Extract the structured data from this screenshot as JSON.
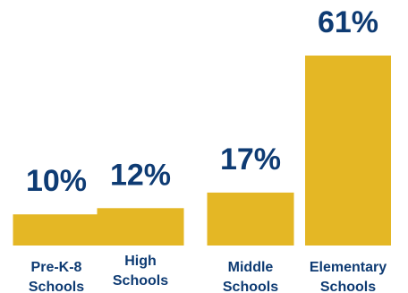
{
  "colors": {
    "bar": "#E4B725",
    "value_text": "#0E3B73",
    "label_text": "#0E3B73",
    "background": "#FFFFFF"
  },
  "chart_data": {
    "type": "bar",
    "title": "",
    "xlabel": "",
    "ylabel": "",
    "ylim": [
      0,
      61
    ],
    "grid": false,
    "legend": "none",
    "categories": [
      [
        "Pre-K-8",
        "Schools"
      ],
      [
        "High",
        "Schools"
      ],
      [
        "Middle",
        "Schools"
      ],
      [
        "Elementary",
        "Schools"
      ]
    ],
    "values": [
      10,
      12,
      17,
      61
    ],
    "value_labels": [
      "10%",
      "12%",
      "17%",
      "61%"
    ]
  }
}
